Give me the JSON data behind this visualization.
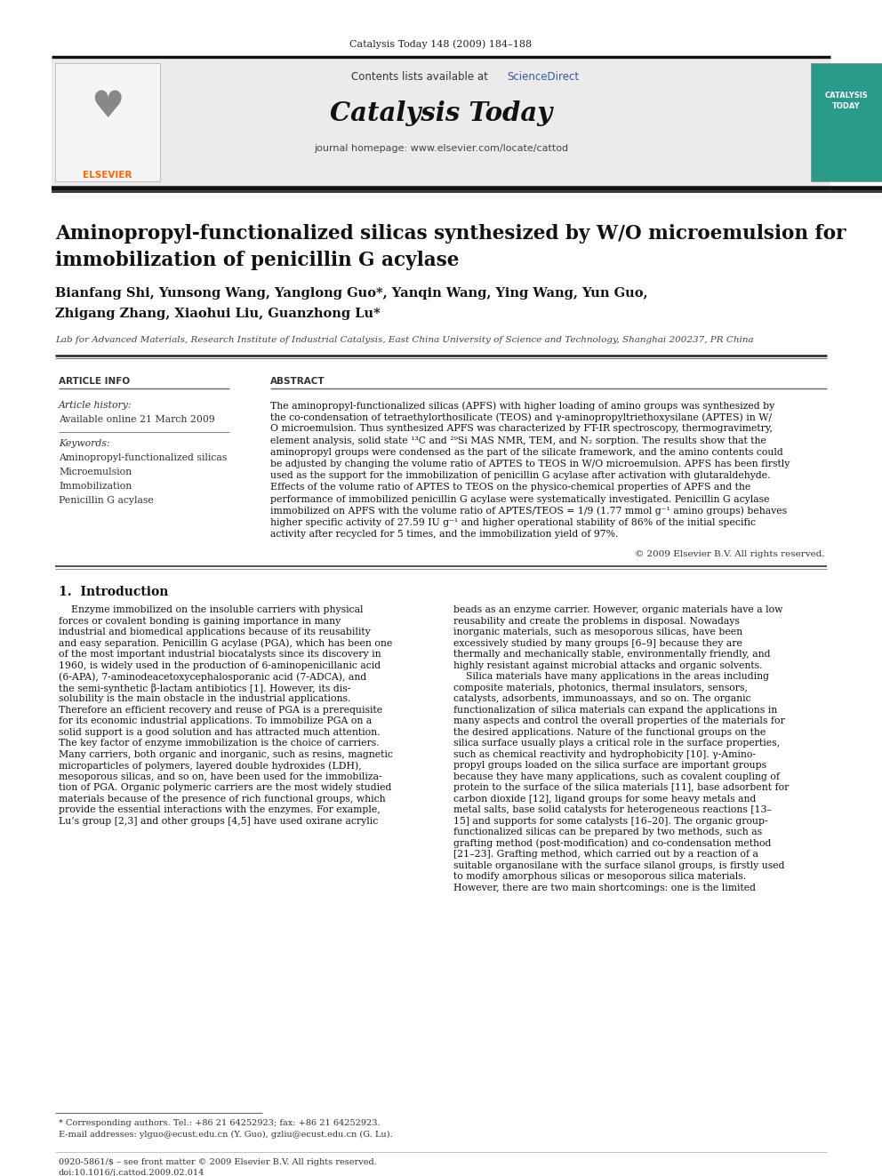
{
  "page_bg": "#ffffff",
  "header_journal": "Catalysis Today 148 (2009) 184–188",
  "journal_name": "Catalysis Today",
  "contents_text": "Contents lists available at ",
  "sciencedirect_text": "ScienceDirect",
  "sciencedirect_color": "#3355aa",
  "journal_homepage": "journal homepage: www.elsevier.com/locate/cattod",
  "header_bg": "#ebebeb",
  "article_title_line1": "Aminopropyl-functionalized silicas synthesized by W/O microemulsion for",
  "article_title_line2": "immobilization of penicillin G acylase",
  "authors_line1": "Bianfang Shi, Yunsong Wang, Yanglong Guo*, Yanqin Wang, Ying Wang, Yun Guo,",
  "authors_line2": "Zhigang Zhang, Xiaohui Liu, Guanzhong Lu*",
  "affiliation": "Lab for Advanced Materials, Research Institute of Industrial Catalysis, East China University of Science and Technology, Shanghai 200237, PR China",
  "article_info_title": "ARTICLE INFO",
  "abstract_title": "ABSTRACT",
  "article_history_label": "Article history:",
  "available_online": "Available online 21 March 2009",
  "keywords_label": "Keywords:",
  "keywords": [
    "Aminopropyl-functionalized silicas",
    "Microemulsion",
    "Immobilization",
    "Penicillin G acylase"
  ],
  "abstract_lines": [
    "The aminopropyl-functionalized silicas (APFS) with higher loading of amino groups was synthesized by",
    "the co-condensation of tetraethylorthosilicate (TEOS) and γ-aminopropyltriethoxysilane (APTES) in W/",
    "O microemulsion. Thus synthesized APFS was characterized by FT-IR spectroscopy, thermogravimetry,",
    "element analysis, solid state ¹³C and ²⁹Si MAS NMR, TEM, and N₂ sorption. The results show that the",
    "aminopropyl groups were condensed as the part of the silicate framework, and the amino contents could",
    "be adjusted by changing the volume ratio of APTES to TEOS in W/O microemulsion. APFS has been firstly",
    "used as the support for the immobilization of penicillin G acylase after activation with glutaraldehyde.",
    "Effects of the volume ratio of APTES to TEOS on the physico-chemical properties of APFS and the",
    "performance of immobilized penicillin G acylase were systematically investigated. Penicillin G acylase",
    "immobilized on APFS with the volume ratio of APTES/TEOS = 1/9 (1.77 mmol g⁻¹ amino groups) behaves",
    "higher specific activity of 27.59 IU g⁻¹ and higher operational stability of 86% of the initial specific",
    "activity after recycled for 5 times, and the immobilization yield of 97%."
  ],
  "copyright": "© 2009 Elsevier B.V. All rights reserved.",
  "intro_title": "1.  Introduction",
  "intro_col1_lines": [
    "    Enzyme immobilized on the insoluble carriers with physical",
    "forces or covalent bonding is gaining importance in many",
    "industrial and biomedical applications because of its reusability",
    "and easy separation. Penicillin G acylase (PGA), which has been one",
    "of the most important industrial biocatalysts since its discovery in",
    "1960, is widely used in the production of 6-aminopenicillanic acid",
    "(6-APA), 7-aminodeacetoxycephalosporanic acid (7-ADCA), and",
    "the semi-synthetic β-lactam antibiotics [1]. However, its dis-",
    "solubility is the main obstacle in the industrial applications.",
    "Therefore an efficient recovery and reuse of PGA is a prerequisite",
    "for its economic industrial applications. To immobilize PGA on a",
    "solid support is a good solution and has attracted much attention.",
    "The key factor of enzyme immobilization is the choice of carriers.",
    "Many carriers, both organic and inorganic, such as resins, magnetic",
    "microparticles of polymers, layered double hydroxides (LDH),",
    "mesoporous silicas, and so on, have been used for the immobiliza-",
    "tion of PGA. Organic polymeric carriers are the most widely studied",
    "materials because of the presence of rich functional groups, which",
    "provide the essential interactions with the enzymes. For example,",
    "Lu’s group [2,3] and other groups [4,5] have used oxirane acrylic"
  ],
  "intro_col2_lines": [
    "beads as an enzyme carrier. However, organic materials have a low",
    "reusability and create the problems in disposal. Nowadays",
    "inorganic materials, such as mesoporous silicas, have been",
    "excessively studied by many groups [6–9] because they are",
    "thermally and mechanically stable, environmentally friendly, and",
    "highly resistant against microbial attacks and organic solvents.",
    "    Silica materials have many applications in the areas including",
    "composite materials, photonics, thermal insulators, sensors,",
    "catalysts, adsorbents, immunoassays, and so on. The organic",
    "functionalization of silica materials can expand the applications in",
    "many aspects and control the overall properties of the materials for",
    "the desired applications. Nature of the functional groups on the",
    "silica surface usually plays a critical role in the surface properties,",
    "such as chemical reactivity and hydrophobicity [10]. γ-Amino-",
    "propyl groups loaded on the silica surface are important groups",
    "because they have many applications, such as covalent coupling of",
    "protein to the surface of the silica materials [11], base adsorbent for",
    "carbon dioxide [12], ligand groups for some heavy metals and",
    "metal salts, base solid catalysts for heterogeneous reactions [13–",
    "15] and supports for some catalysts [16–20]. The organic group-",
    "functionalized silicas can be prepared by two methods, such as",
    "grafting method (post-modification) and co-condensation method",
    "[21–23]. Grafting method, which carried out by a reaction of a",
    "suitable organosilane with the surface silanol groups, is firstly used",
    "to modify amorphous silicas or mesoporous silica materials.",
    "However, there are two main shortcomings: one is the limited"
  ],
  "footnote_star": "* Corresponding authors. Tel.: +86 21 64252923; fax: +86 21 64252923.",
  "footnote_email": "E-mail addresses: ylguo@ecust.edu.cn (Y. Guo), gzliu@ecust.edu.cn (G. Lu).",
  "bottom_line1": "0920-5861/$ – see front matter © 2009 Elsevier B.V. All rights reserved.",
  "bottom_line2": "doi:10.1016/j.cattod.2009.02.014",
  "elsevier_color": "#ff6600",
  "cover_color": "#2a9a8a"
}
